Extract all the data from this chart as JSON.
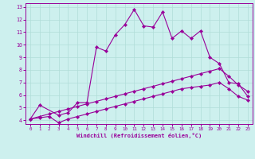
{
  "xlabel": "Windchill (Refroidissement éolien,°C)",
  "background_color": "#cdf0ee",
  "line_color": "#990099",
  "grid_color": "#b0ddd8",
  "xlim": [
    -0.5,
    23.5
  ],
  "ylim": [
    3.7,
    13.3
  ],
  "xticks": [
    0,
    1,
    2,
    3,
    4,
    5,
    6,
    7,
    8,
    9,
    10,
    11,
    12,
    13,
    14,
    15,
    16,
    17,
    18,
    19,
    20,
    21,
    22,
    23
  ],
  "yticks": [
    4,
    5,
    6,
    7,
    8,
    9,
    10,
    11,
    12,
    13
  ],
  "line1_x": [
    0,
    1,
    3,
    4,
    5,
    6,
    7,
    8,
    9,
    10,
    11,
    12,
    13,
    14,
    15,
    16,
    17,
    18,
    19,
    20,
    21,
    22,
    23
  ],
  "line1_y": [
    4.1,
    5.2,
    4.4,
    4.6,
    5.4,
    5.4,
    9.8,
    9.5,
    10.8,
    11.6,
    12.8,
    11.5,
    11.4,
    12.6,
    10.5,
    11.1,
    10.5,
    11.1,
    9.0,
    8.5,
    7.0,
    6.9,
    5.9
  ],
  "line2_x": [
    0,
    1,
    2,
    3,
    4,
    5,
    6,
    7,
    8,
    9,
    10,
    11,
    12,
    13,
    14,
    15,
    16,
    17,
    18,
    19,
    20,
    21,
    22,
    23
  ],
  "line2_y": [
    4.1,
    4.3,
    4.5,
    4.7,
    4.9,
    5.1,
    5.3,
    5.5,
    5.7,
    5.9,
    6.1,
    6.3,
    6.5,
    6.7,
    6.9,
    7.1,
    7.3,
    7.5,
    7.7,
    7.9,
    8.1,
    7.5,
    6.8,
    6.3
  ],
  "line3_x": [
    0,
    1,
    2,
    3,
    4,
    5,
    6,
    7,
    8,
    9,
    10,
    11,
    12,
    13,
    14,
    15,
    16,
    17,
    18,
    19,
    20,
    21,
    22,
    23
  ],
  "line3_y": [
    4.1,
    4.2,
    4.3,
    3.8,
    4.1,
    4.3,
    4.5,
    4.7,
    4.9,
    5.1,
    5.3,
    5.5,
    5.7,
    5.9,
    6.1,
    6.3,
    6.5,
    6.6,
    6.7,
    6.8,
    7.0,
    6.5,
    5.9,
    5.6
  ]
}
